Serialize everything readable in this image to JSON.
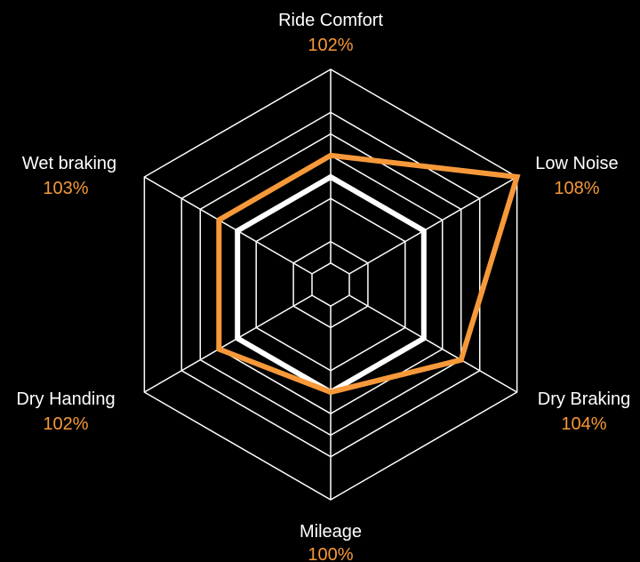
{
  "chart_data": {
    "type": "radar",
    "title": "",
    "axes": [
      {
        "name": "Ride Comfort",
        "value_label": "102%"
      },
      {
        "name": "Low Noise",
        "value_label": "108%"
      },
      {
        "name": "Dry Braking",
        "value_label": "104%"
      },
      {
        "name": "Mileage",
        "value_label": "100%"
      },
      {
        "name": "Dry Handing",
        "value_label": "102%"
      },
      {
        "name": "Wet braking",
        "value_label": "103%"
      }
    ],
    "range": [
      0,
      100
    ],
    "grid_levels": [
      10,
      20,
      40,
      60,
      70,
      80,
      100
    ],
    "series": [
      {
        "role": "baseline",
        "color": "#ffffff",
        "values": [
          50,
          50,
          50,
          50,
          50,
          50
        ]
      },
      {
        "role": "product",
        "color": "#f7993a",
        "values": [
          60,
          100,
          70,
          50,
          60,
          60
        ]
      }
    ],
    "grid": true,
    "legend": "none",
    "colors": {
      "background": "#000000",
      "grid": "#ffffff",
      "accent": "#f7993a"
    }
  }
}
